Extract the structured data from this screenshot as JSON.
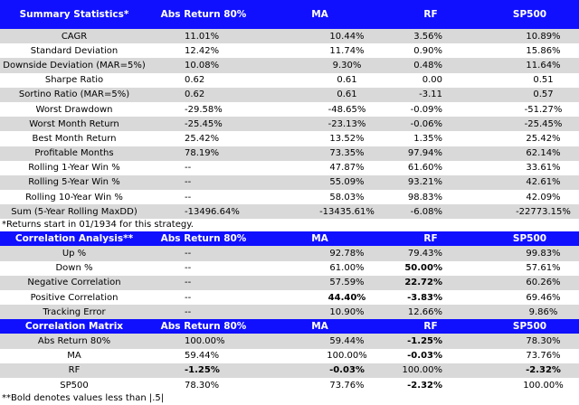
{
  "summary": {
    "headers": [
      "Summary Statistics*",
      "Abs Return 80%",
      "MA",
      "RF",
      "SP500"
    ],
    "rows": [
      {
        "label": "CAGR",
        "v": [
          "11.01%",
          "10.44%",
          "3.56%",
          "10.89%"
        ]
      },
      {
        "label": "Standard Deviation",
        "v": [
          "12.42%",
          "11.74%",
          "0.90%",
          "15.86%"
        ]
      },
      {
        "label": "Downside Deviation (MAR=5%)",
        "v": [
          "10.08%",
          "9.30%",
          "0.48%",
          "11.64%"
        ]
      },
      {
        "label": "Sharpe Ratio",
        "v": [
          "0.62",
          "0.61",
          "0.00",
          "0.51"
        ]
      },
      {
        "label": "Sortino Ratio (MAR=5%)",
        "v": [
          "0.62",
          "0.61",
          "-3.11",
          "0.57"
        ]
      },
      {
        "label": "Worst Drawdown",
        "v": [
          "-29.58%",
          "-48.65%",
          "-0.09%",
          "-51.27%"
        ]
      },
      {
        "label": "Worst Month Return",
        "v": [
          "-25.45%",
          "-23.13%",
          "-0.06%",
          "-25.45%"
        ]
      },
      {
        "label": "Best Month Return",
        "v": [
          "25.42%",
          "13.52%",
          "1.35%",
          "25.42%"
        ]
      },
      {
        "label": "Profitable Months",
        "v": [
          "78.19%",
          "73.35%",
          "97.94%",
          "62.14%"
        ]
      },
      {
        "label": "Rolling 1-Year Win %",
        "v": [
          "--",
          "47.87%",
          "61.60%",
          "33.61%"
        ]
      },
      {
        "label": "Rolling 5-Year Win %",
        "v": [
          "--",
          "55.09%",
          "93.21%",
          "42.61%"
        ]
      },
      {
        "label": "Rolling 10-Year Win %",
        "v": [
          "--",
          "58.03%",
          "98.83%",
          "42.09%"
        ]
      },
      {
        "label": "Sum (5-Year Rolling MaxDD)",
        "v": [
          "-13496.64%",
          "-13435.61%",
          "-6.08%",
          "-22773.15%"
        ]
      }
    ],
    "note": "*Returns start in 01/1934 for this strategy."
  },
  "correlation_analysis": {
    "headers": [
      "Correlation Analysis**",
      "Abs Return 80%",
      "MA",
      "RF",
      "SP500"
    ],
    "rows": [
      {
        "label": "Up %",
        "v": [
          "--",
          "92.78%",
          "79.43%",
          "99.83%"
        ]
      },
      {
        "label": "Down %",
        "v": [
          "--",
          "61.00%",
          "50.00%",
          "57.61%"
        ]
      },
      {
        "label": "Negative Correlation",
        "v": [
          "--",
          "57.59%",
          "22.72%",
          "60.26%"
        ]
      },
      {
        "label": "Positive Correlation",
        "v": [
          "--",
          "44.40%",
          "-3.83%",
          "69.46%"
        ]
      },
      {
        "label": "Tracking Error",
        "v": [
          "--",
          "10.90%",
          "12.66%",
          "9.86%"
        ]
      }
    ]
  },
  "correlation_matrix": {
    "headers": [
      "Correlation Matrix",
      "Abs Return 80%",
      "MA",
      "RF",
      "SP500"
    ],
    "rows": [
      {
        "label": "Abs Return 80%",
        "v": [
          "100.00%",
          "59.44%",
          "-1.25%",
          "78.30%"
        ]
      },
      {
        "label": "MA",
        "v": [
          "59.44%",
          "100.00%",
          "-0.03%",
          "73.76%"
        ]
      },
      {
        "label": "RF",
        "v": [
          "-1.25%",
          "-0.03%",
          "100.00%",
          "-2.32%"
        ]
      },
      {
        "label": "SP500",
        "v": [
          "78.30%",
          "73.76%",
          "-2.32%",
          "100.00%"
        ]
      }
    ],
    "note": "**Bold denotes values less than |.5|"
  },
  "colors": {
    "header_bg": "#1010ff",
    "row_gray": "#d9d9d9"
  }
}
